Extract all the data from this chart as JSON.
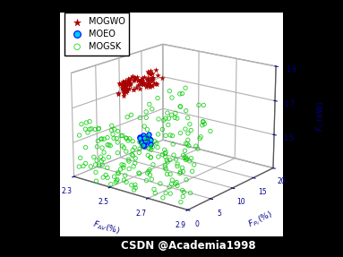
{
  "xlabel": "$F_{\\Delta V}(\\%)$",
  "ylabel": "$F_{P_Y}(\\%)$",
  "zlabel": "$F_{\\mathrm{L}}$ (kW)",
  "xlim": [
    2.3,
    2.9
  ],
  "ylim": [
    0,
    20
  ],
  "zlim": [
    1.3,
    1.9
  ],
  "xticks": [
    2.3,
    2.5,
    2.7,
    2.9
  ],
  "yticks": [
    0,
    5,
    10,
    15,
    20
  ],
  "zticks": [
    1.5,
    1.7,
    1.9
  ],
  "watermark": "CSDN @Academia1998",
  "legend_labels": [
    "MOGWO",
    "MOEO",
    "MOGSK"
  ],
  "elev": 18,
  "azim": -52
}
